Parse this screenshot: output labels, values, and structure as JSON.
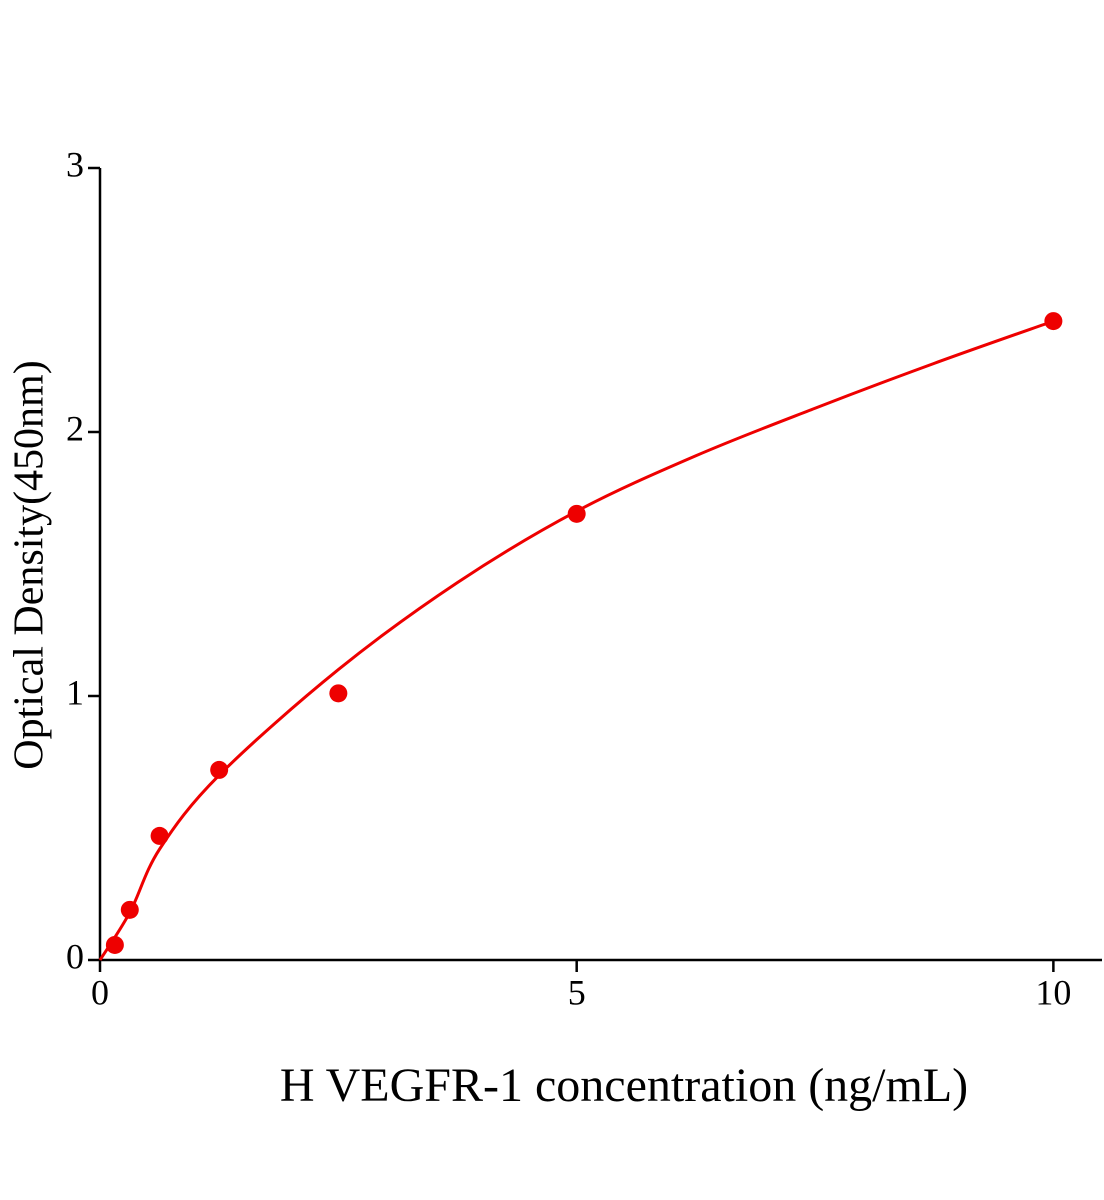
{
  "chart_data": {
    "type": "scatter",
    "x_label": "H VEGFR-1 concentration (ng/mL)",
    "y_label": "Optical Density(450nm)",
    "x": [
      0.156,
      0.3125,
      0.625,
      1.25,
      2.5,
      5,
      10
    ],
    "values": [
      0.057,
      0.19,
      0.47,
      0.72,
      1.01,
      1.69,
      2.42
    ],
    "color": "#ee0000",
    "curve": {
      "x": [
        0,
        0.3125,
        0.625,
        1.25,
        2.5,
        3.75,
        5,
        6.25,
        7.5,
        8.75,
        10
      ],
      "y": [
        0,
        0.18,
        0.42,
        0.7,
        1.1,
        1.43,
        1.7,
        1.91,
        2.09,
        2.26,
        2.42
      ]
    },
    "xlim": [
      0,
      10.51
    ],
    "ylim": [
      0,
      3
    ],
    "xticks": [
      0,
      5,
      10
    ],
    "yticks": [
      0,
      1,
      2,
      3
    ]
  }
}
